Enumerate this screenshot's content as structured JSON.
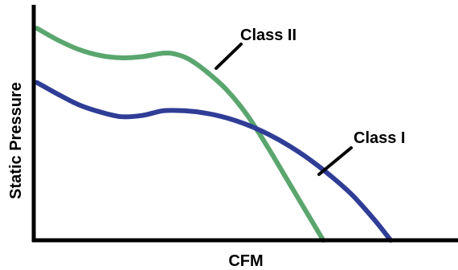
{
  "chart_data": {
    "type": "line",
    "title": "",
    "xlabel": "CFM",
    "ylabel": "Static Pressure",
    "xlim": [
      0,
      100
    ],
    "ylim": [
      0,
      100
    ],
    "grid": false,
    "legend": "none",
    "series": [
      {
        "name": "Class II",
        "color": "#5aa66e",
        "points": [
          [
            0,
            90
          ],
          [
            5,
            85
          ],
          [
            10,
            81
          ],
          [
            15,
            78.5
          ],
          [
            20,
            77.5
          ],
          [
            25,
            78
          ],
          [
            30,
            79.5
          ],
          [
            33,
            79
          ],
          [
            36,
            77
          ],
          [
            40,
            72
          ],
          [
            45,
            64
          ],
          [
            50,
            53
          ],
          [
            55,
            39
          ],
          [
            60,
            24
          ],
          [
            65,
            9
          ],
          [
            68,
            0
          ]
        ]
      },
      {
        "name": "Class I",
        "color": "#2f3d96",
        "points": [
          [
            0,
            67
          ],
          [
            5,
            62
          ],
          [
            10,
            57.5
          ],
          [
            15,
            54.5
          ],
          [
            20,
            52.5
          ],
          [
            25,
            53
          ],
          [
            30,
            55
          ],
          [
            35,
            55
          ],
          [
            40,
            54
          ],
          [
            45,
            52
          ],
          [
            50,
            49
          ],
          [
            55,
            45
          ],
          [
            60,
            40
          ],
          [
            65,
            34
          ],
          [
            70,
            27
          ],
          [
            75,
            19
          ],
          [
            80,
            9
          ],
          [
            84,
            0
          ]
        ]
      }
    ],
    "annotations": [
      "Class II",
      "Class I"
    ]
  }
}
